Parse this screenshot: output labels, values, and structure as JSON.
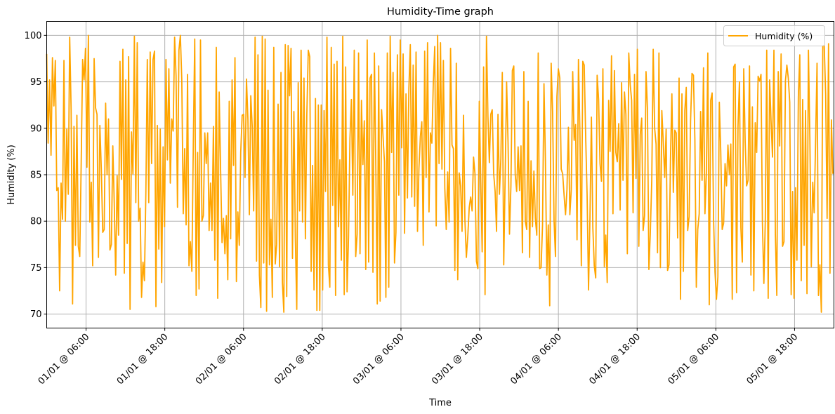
{
  "chart_data": {
    "type": "line",
    "title": "Humidity-Time graph",
    "xlabel": "Time",
    "ylabel": "Humidity (%)",
    "legend_position": "top-right",
    "grid": true,
    "ylim": [
      68.5,
      101.5
    ],
    "xlim": [
      "2000-01-01T00:00",
      "2000-01-06T00:00"
    ],
    "x_ticks": [
      {
        "t": "2000-01-01T06:00",
        "label": "01/01 @ 06:00"
      },
      {
        "t": "2000-01-01T18:00",
        "label": "01/01 @ 18:00"
      },
      {
        "t": "2000-01-02T06:00",
        "label": "02/01 @ 06:00"
      },
      {
        "t": "2000-01-02T18:00",
        "label": "02/01 @ 18:00"
      },
      {
        "t": "2000-01-03T06:00",
        "label": "03/01 @ 06:00"
      },
      {
        "t": "2000-01-03T18:00",
        "label": "03/01 @ 18:00"
      },
      {
        "t": "2000-01-04T06:00",
        "label": "04/01 @ 06:00"
      },
      {
        "t": "2000-01-04T18:00",
        "label": "04/01 @ 18:00"
      },
      {
        "t": "2000-01-05T06:00",
        "label": "05/01 @ 06:00"
      },
      {
        "t": "2000-01-05T18:00",
        "label": "05/01 @ 18:00"
      }
    ],
    "y_ticks": [
      {
        "value": 70,
        "label": "70"
      },
      {
        "value": 75,
        "label": "75"
      },
      {
        "value": 80,
        "label": "80"
      },
      {
        "value": 85,
        "label": "85"
      },
      {
        "value": 90,
        "label": "90"
      },
      {
        "value": 95,
        "label": "95"
      },
      {
        "value": 100,
        "label": "100"
      }
    ],
    "series": [
      {
        "name": "Humidity (%)",
        "color": "#ffa500",
        "x_start": "2000-01-01T00:00",
        "x_end": "2000-01-05T23:50",
        "values": [
          98.0,
          88.4,
          95.2,
          87.1,
          97.6,
          92.4,
          97.3,
          83.3,
          83.6,
          72.5,
          84.1,
          80.2,
          97.3,
          80.0,
          89.9,
          82.9,
          99.8,
          92.0,
          71.1,
          90.2,
          77.4,
          91.4,
          77.3,
          76.2,
          86.3,
          97.4,
          95.2,
          98.6,
          85.8,
          100.0,
          79.9,
          84.2,
          75.2,
          97.5,
          92.2,
          91.5,
          76.1,
          90.3,
          85.6,
          78.8,
          79.1,
          92.7,
          85.0,
          91.0,
          76.9,
          77.5,
          88.1,
          81.9,
          74.2,
          84.9,
          78.5,
          97.2,
          84.5,
          98.5,
          74.4,
          95.2,
          77.6,
          97.7,
          70.5,
          89.6,
          85.1,
          99.9,
          82.0,
          99.2,
          80.0,
          81.4,
          71.8,
          75.6,
          73.6,
          83.1,
          97.4,
          82.0,
          98.2,
          86.2,
          97.4,
          98.3,
          70.8,
          90.3,
          77.0,
          89.9,
          73.4,
          88.0,
          79.4,
          97.4,
          86.6,
          96.4,
          84.1,
          91.0,
          89.7,
          99.8,
          95.7,
          81.5,
          98.4,
          100.0,
          95.2,
          80.8,
          87.8,
          79.6,
          95.8,
          75.2,
          77.8,
          74.6,
          88.2,
          99.6,
          72.0,
          87.4,
          72.7,
          99.5,
          80.0,
          80.6,
          89.5,
          86.2,
          89.5,
          79.0,
          84.1,
          79.0,
          90.2,
          75.8,
          98.7,
          71.7,
          93.9,
          85.5,
          77.7,
          80.3,
          76.5,
          80.6,
          73.7,
          92.9,
          78.1,
          95.2,
          86.0,
          97.6,
          73.5,
          81.0,
          77.4,
          87.4,
          91.4,
          91.5,
          84.7,
          95.3,
          91.0,
          80.7,
          93.5,
          90.2,
          81.1,
          99.8,
          75.7,
          97.9,
          74.2,
          70.7,
          99.9,
          75.5,
          99.6,
          70.3,
          94.1,
          75.3,
          80.2,
          71.8,
          98.7,
          75.4,
          77.5,
          92.6,
          75.1,
          96.0,
          73.4,
          70.2,
          99.0,
          71.9,
          98.9,
          93.5,
          98.6,
          76.0,
          91.8,
          78.2,
          70.5,
          94.9,
          81.1,
          98.4,
          79.9,
          95.4,
          78.1,
          91.5,
          98.4,
          97.7,
          74.6,
          86.0,
          72.6,
          93.2,
          70.4,
          92.5,
          70.4,
          92.5,
          72.6,
          91.9,
          83.2,
          99.8,
          75.3,
          72.9,
          98.7,
          81.7,
          96.9,
          72.0,
          97.2,
          79.4,
          86.6,
          75.8,
          99.9,
          72.1,
          96.6,
          72.4,
          78.2,
          88.9,
          93.1,
          82.8,
          98.4,
          76.2,
          78.6,
          98.1,
          76.5,
          93.0,
          86.1,
          90.8,
          74.8,
          99.5,
          75.6,
          95.4,
          95.8,
          74.5,
          98.1,
          85.9,
          71.1,
          96.7,
          71.4,
          92.0,
          89.2,
          86.4,
          71.8,
          98.1,
          72.9,
          99.9,
          87.4,
          96.0,
          75.5,
          78.8,
          97.9,
          82.8,
          99.5,
          87.9,
          98.0,
          78.7,
          93.7,
          82.5,
          94.3,
          99.0,
          82.6,
          96.8,
          81.6,
          98.2,
          78.9,
          85.7,
          89.1,
          90.7,
          77.4,
          98.3,
          84.7,
          99.2,
          81.0,
          89.5,
          88.4,
          94.9,
          98.8,
          79.5,
          100.0,
          86.2,
          99.2,
          85.6,
          97.3,
          83.6,
          79.1,
          85.3,
          79.9,
          98.6,
          88.2,
          87.8,
          74.7,
          97.0,
          73.7,
          85.2,
          83.8,
          78.9,
          91.4,
          80.1,
          76.1,
          78.4,
          81.5,
          82.6,
          81.1,
          86.9,
          85.1,
          75.7,
          74.9,
          92.9,
          84.4,
          76.7,
          96.6,
          72.1,
          99.9,
          91.3,
          86.3,
          91.5,
          92.0,
          85.1,
          83.2,
          78.9,
          91.5,
          82.9,
          86.7,
          96.0,
          75.3,
          84.8,
          95.0,
          88.5,
          78.6,
          83.8,
          96.2,
          96.7,
          85.0,
          83.2,
          88.0,
          83.3,
          88.1,
          76.6,
          96.1,
          80.0,
          79.1,
          92.9,
          76.1,
          86.5,
          79.4,
          85.4,
          80.3,
          78.5,
          98.1,
          74.9,
          75.0,
          79.6,
          94.8,
          86.6,
          74.2,
          79.6,
          70.9,
          97.0,
          91.8,
          80.1,
          76.2,
          93.4,
          96.4,
          95.4,
          85.6,
          85.1,
          82.8,
          80.7,
          83.4,
          90.1,
          80.7,
          83.4,
          96.1,
          88.7,
          90.4,
          78.0,
          97.4,
          89.7,
          75.2,
          97.2,
          96.8,
          89.2,
          82.9,
          72.6,
          80.4,
          91.2,
          79.3,
          75.2,
          73.9,
          95.7,
          93.1,
          86.2,
          84.3,
          96.4,
          75.1,
          78.5,
          73.4,
          93.0,
          87.5,
          97.8,
          80.8,
          96.2,
          87.4,
          86.4,
          90.5,
          81.2,
          94.9,
          84.4,
          93.9,
          91.5,
          76.5,
          98.1,
          94.7,
          93.0,
          80.9,
          95.8,
          84.6,
          98.5,
          77.3,
          89.3,
          91.1,
          79.0,
          80.6,
          96.1,
          92.1,
          74.8,
          78.8,
          84.4,
          98.5,
          90.0,
          88.3,
          76.6,
          98.1,
          75.0,
          91.9,
          88.5,
          84.7,
          89.9,
          74.7,
          75.3,
          86.5,
          93.7,
          83.1,
          89.8,
          89.5,
          78.2,
          95.4,
          71.6,
          93.7,
          74.6,
          91.9,
          94.4,
          79.0,
          80.5,
          90.8,
          95.9,
          95.7,
          88.8,
          72.9,
          79.1,
          80.8,
          91.8,
          84.4,
          96.5,
          80.8,
          85.1,
          98.1,
          71.0,
          93.0,
          93.8,
          80.2,
          74.5,
          71.6,
          74.0,
          92.8,
          87.5,
          79.1,
          79.8,
          86.2,
          83.8,
          88.2,
          85.0,
          88.3,
          71.6,
          96.6,
          96.9,
          72.3,
          90.2,
          95.0,
          79.3,
          75.6,
          96.4,
          88.5,
          83.8,
          84.4,
          96.7,
          74.2,
          92.3,
          72.5,
          90.6,
          87.4,
          95.6,
          95.1,
          95.8,
          79.8,
          73.3,
          80.1,
          98.4,
          71.7,
          95.2,
          90.8,
          86.9,
          98.4,
          78.6,
          72.0,
          96.1,
          88.1,
          98.0,
          77.3,
          77.8,
          95.1,
          96.8,
          95.4,
          92.8,
          72.1,
          83.2,
          71.7,
          83.6,
          75.8,
          93.4,
          97.9,
          73.6,
          93.1,
          77.4,
          91.9,
          72.2,
          98.4,
          89.0,
          75.1,
          84.2,
          80.9,
          88.6,
          97.0,
          72.0,
          75.3,
          70.2,
          98.9,
          98.9,
          93.6,
          80.3,
          99.1,
          74.4,
          90.9,
          85.1
        ]
      }
    ]
  }
}
